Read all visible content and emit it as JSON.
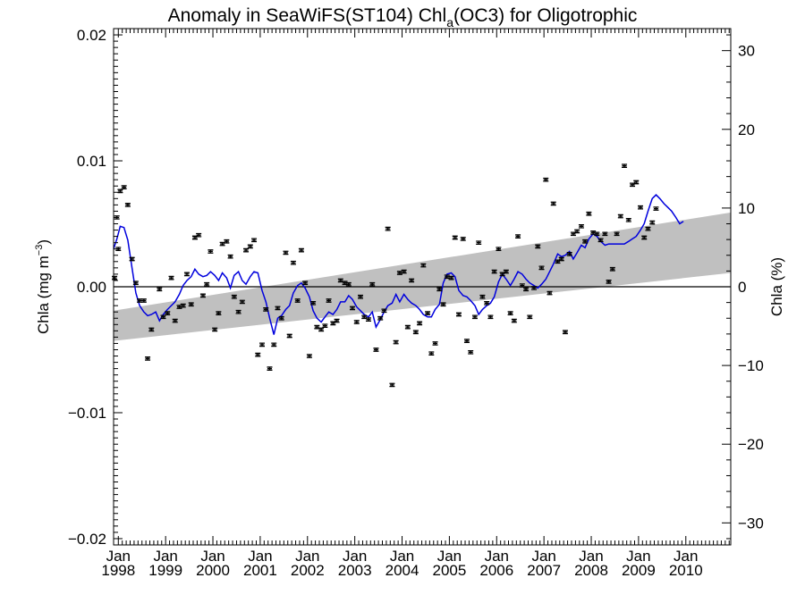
{
  "chart_data": {
    "type": "line",
    "title": {
      "prefix": "Anomaly in SeaWiFS(ST104) Chl",
      "subscript": "a",
      "suffix": "(OC3) for Oligotrophic"
    },
    "ylabel_left": {
      "text": "Chla (mg m",
      "superscript": "−3",
      "close": ")"
    },
    "ylabel_right": "Chla (%)",
    "xlim": [
      1997.9,
      2010.95
    ],
    "ylim_left": [
      -0.0205,
      0.0205
    ],
    "ylim_right": [
      -32.8,
      32.8
    ],
    "x_ticks": [
      {
        "month": "Jan",
        "year": "1998",
        "x": 1998
      },
      {
        "month": "Jan",
        "year": "1999",
        "x": 1999
      },
      {
        "month": "Jan",
        "year": "2000",
        "x": 2000
      },
      {
        "month": "Jan",
        "year": "2001",
        "x": 2001
      },
      {
        "month": "Jan",
        "year": "2002",
        "x": 2002
      },
      {
        "month": "Jan",
        "year": "2003",
        "x": 2003
      },
      {
        "month": "Jan",
        "year": "2004",
        "x": 2004
      },
      {
        "month": "Jan",
        "year": "2005",
        "x": 2005
      },
      {
        "month": "Jan",
        "year": "2006",
        "x": 2006
      },
      {
        "month": "Jan",
        "year": "2007",
        "x": 2007
      },
      {
        "month": "Jan",
        "year": "2008",
        "x": 2008
      },
      {
        "month": "Jan",
        "year": "2009",
        "x": 2009
      },
      {
        "month": "Jan",
        "year": "2010",
        "x": 2010
      }
    ],
    "y_ticks_left": [
      {
        "label": "0.02",
        "value": 0.02
      },
      {
        "label": "0.01",
        "value": 0.01
      },
      {
        "label": "0.00",
        "value": 0.0
      },
      {
        "label": "−0.01",
        "value": -0.01
      },
      {
        "label": "−0.02",
        "value": -0.02
      }
    ],
    "y_ticks_right": [
      {
        "label": "30",
        "value": 30
      },
      {
        "label": "20",
        "value": 20
      },
      {
        "label": "10",
        "value": 10
      },
      {
        "label": "0",
        "value": 0
      },
      {
        "label": "−10",
        "value": -10
      },
      {
        "label": "−20",
        "value": -20
      },
      {
        "label": "−30",
        "value": -30
      }
    ],
    "trend_band": {
      "color": "#c0c0c0",
      "start": {
        "x": 1997.9,
        "lower": -0.0043,
        "upper": -0.0019
      },
      "end": {
        "x": 2010.95,
        "lower": 0.0011,
        "upper": 0.0059
      }
    },
    "zero_line": {
      "value": 0.0,
      "color": "#000000"
    },
    "monthly_anomaly": {
      "color": "#000000",
      "error_bar": 0.00012,
      "points": [
        [
          1997.92,
          0.0007
        ],
        [
          1997.97,
          0.0055
        ],
        [
          1998.0,
          0.003
        ],
        [
          1998.04,
          0.0076
        ],
        [
          1998.12,
          0.0079
        ],
        [
          1998.2,
          0.0065
        ],
        [
          1998.29,
          0.0022
        ],
        [
          1998.37,
          0.0003
        ],
        [
          1998.45,
          -0.0011
        ],
        [
          1998.54,
          -0.0011
        ],
        [
          1998.62,
          -0.0057
        ],
        [
          1998.7,
          -0.0034
        ],
        [
          1998.87,
          -0.0002
        ],
        [
          1998.95,
          -0.0024
        ],
        [
          1999.04,
          -0.0021
        ],
        [
          1999.12,
          0.0007
        ],
        [
          1999.2,
          -0.0027
        ],
        [
          1999.29,
          -0.0016
        ],
        [
          1999.37,
          -0.0015
        ],
        [
          1999.45,
          0.001
        ],
        [
          1999.54,
          -0.0014
        ],
        [
          1999.62,
          0.0039
        ],
        [
          1999.7,
          0.0041
        ],
        [
          1999.79,
          -0.0007
        ],
        [
          1999.87,
          0.0002
        ],
        [
          1999.95,
          0.0028
        ],
        [
          2000.04,
          -0.0034
        ],
        [
          2000.12,
          -0.0021
        ],
        [
          2000.2,
          0.0034
        ],
        [
          2000.29,
          0.0036
        ],
        [
          2000.37,
          0.0024
        ],
        [
          2000.45,
          -0.0008
        ],
        [
          2000.54,
          -0.002
        ],
        [
          2000.62,
          -0.0012
        ],
        [
          2000.7,
          0.0029
        ],
        [
          2000.79,
          0.0032
        ],
        [
          2000.87,
          0.0037
        ],
        [
          2000.95,
          -0.0054
        ],
        [
          2001.04,
          -0.0046
        ],
        [
          2001.12,
          -0.0018
        ],
        [
          2001.2,
          -0.0065
        ],
        [
          2001.29,
          -0.0046
        ],
        [
          2001.37,
          -0.0017
        ],
        [
          2001.45,
          -0.0025
        ],
        [
          2001.54,
          0.0027
        ],
        [
          2001.62,
          -0.0039
        ],
        [
          2001.7,
          0.0019
        ],
        [
          2001.79,
          -0.0011
        ],
        [
          2001.87,
          0.0029
        ],
        [
          2001.95,
          0.0003
        ],
        [
          2002.04,
          -0.0055
        ],
        [
          2002.12,
          -0.0013
        ],
        [
          2002.2,
          -0.0032
        ],
        [
          2002.29,
          -0.0034
        ],
        [
          2002.37,
          -0.0031
        ],
        [
          2002.45,
          -0.0011
        ],
        [
          2002.54,
          -0.0029
        ],
        [
          2002.62,
          -0.0027
        ],
        [
          2002.7,
          0.0005
        ],
        [
          2002.79,
          0.0003
        ],
        [
          2002.87,
          0.0002
        ],
        [
          2002.95,
          -0.0017
        ],
        [
          2003.04,
          -0.0028
        ],
        [
          2003.12,
          -0.0008
        ],
        [
          2003.2,
          -0.0024
        ],
        [
          2003.29,
          -0.0026
        ],
        [
          2003.37,
          0.0002
        ],
        [
          2003.45,
          -0.005
        ],
        [
          2003.54,
          -0.0025
        ],
        [
          2003.62,
          -0.0019
        ],
        [
          2003.7,
          0.0046
        ],
        [
          2003.79,
          -0.0078
        ],
        [
          2003.87,
          -0.0044
        ],
        [
          2003.95,
          0.0011
        ],
        [
          2004.04,
          0.0012
        ],
        [
          2004.12,
          -0.0032
        ],
        [
          2004.2,
          0.0005
        ],
        [
          2004.29,
          -0.0036
        ],
        [
          2004.37,
          -0.0029
        ],
        [
          2004.45,
          0.0017
        ],
        [
          2004.54,
          -0.0021
        ],
        [
          2004.62,
          -0.0053
        ],
        [
          2004.7,
          -0.0045
        ],
        [
          2004.79,
          -0.0002
        ],
        [
          2004.87,
          -0.0014
        ],
        [
          2004.95,
          0.0008
        ],
        [
          2005.04,
          0.0007
        ],
        [
          2005.12,
          0.0039
        ],
        [
          2005.2,
          -0.0022
        ],
        [
          2005.29,
          0.0038
        ],
        [
          2005.37,
          -0.0043
        ],
        [
          2005.45,
          -0.0052
        ],
        [
          2005.54,
          -0.0024
        ],
        [
          2005.62,
          0.0035
        ],
        [
          2005.7,
          -0.0008
        ],
        [
          2005.79,
          -0.0013
        ],
        [
          2005.87,
          -0.0024
        ],
        [
          2005.95,
          0.0012
        ],
        [
          2006.04,
          0.003
        ],
        [
          2006.12,
          0.001
        ],
        [
          2006.2,
          0.0012
        ],
        [
          2006.29,
          -0.0021
        ],
        [
          2006.37,
          -0.0027
        ],
        [
          2006.45,
          0.004
        ],
        [
          2006.54,
          0.0001
        ],
        [
          2006.62,
          -0.0002
        ],
        [
          2006.7,
          -0.0024
        ],
        [
          2006.79,
          -0.0001
        ],
        [
          2006.87,
          0.0032
        ],
        [
          2006.95,
          0.0015
        ],
        [
          2007.04,
          0.0085
        ],
        [
          2007.12,
          -0.0005
        ],
        [
          2007.2,
          0.0066
        ],
        [
          2007.29,
          0.002
        ],
        [
          2007.37,
          0.0022
        ],
        [
          2007.45,
          -0.0036
        ],
        [
          2007.54,
          0.0026
        ],
        [
          2007.62,
          0.0042
        ],
        [
          2007.7,
          0.0044
        ],
        [
          2007.79,
          0.0048
        ],
        [
          2007.87,
          0.0036
        ],
        [
          2007.95,
          0.0058
        ],
        [
          2008.04,
          0.0043
        ],
        [
          2008.12,
          0.0042
        ],
        [
          2008.2,
          0.0037
        ],
        [
          2008.29,
          0.0042
        ],
        [
          2008.37,
          0.0004
        ],
        [
          2008.45,
          0.0014
        ],
        [
          2008.54,
          0.0042
        ],
        [
          2008.62,
          0.0056
        ],
        [
          2008.7,
          0.0096
        ],
        [
          2008.79,
          0.0053
        ],
        [
          2008.87,
          0.0081
        ],
        [
          2008.95,
          0.0083
        ],
        [
          2009.04,
          0.0063
        ],
        [
          2009.12,
          0.0039
        ],
        [
          2009.2,
          0.0046
        ],
        [
          2009.29,
          0.0051
        ],
        [
          2009.37,
          0.0062
        ]
      ]
    },
    "running_mean": {
      "color": "#0000dd",
      "points": [
        [
          1997.9,
          0.003
        ],
        [
          1997.97,
          0.0038
        ],
        [
          1998.04,
          0.0048
        ],
        [
          1998.12,
          0.0047
        ],
        [
          1998.2,
          0.0037
        ],
        [
          1998.29,
          0.0015
        ],
        [
          1998.37,
          -0.0005
        ],
        [
          1998.45,
          -0.0015
        ],
        [
          1998.54,
          -0.002
        ],
        [
          1998.62,
          -0.0023
        ],
        [
          1998.7,
          -0.0022
        ],
        [
          1998.79,
          -0.002
        ],
        [
          1998.87,
          -0.0027
        ],
        [
          1998.95,
          -0.0022
        ],
        [
          1999.04,
          -0.0018
        ],
        [
          1999.12,
          -0.0015
        ],
        [
          1999.2,
          -0.0012
        ],
        [
          1999.29,
          -0.0006
        ],
        [
          1999.37,
          0.0001
        ],
        [
          1999.45,
          0.0005
        ],
        [
          1999.54,
          0.0008
        ],
        [
          1999.62,
          0.0014
        ],
        [
          1999.7,
          0.001
        ],
        [
          1999.79,
          0.0008
        ],
        [
          1999.87,
          0.0009
        ],
        [
          1999.95,
          0.0012
        ],
        [
          2000.04,
          0.0009
        ],
        [
          2000.12,
          0.0005
        ],
        [
          2000.2,
          0.0011
        ],
        [
          2000.29,
          0.0007
        ],
        [
          2000.37,
          -0.0001
        ],
        [
          2000.45,
          0.0009
        ],
        [
          2000.54,
          0.0012
        ],
        [
          2000.62,
          0.0005
        ],
        [
          2000.7,
          0.0002
        ],
        [
          2000.79,
          0.0008
        ],
        [
          2000.87,
          0.0012
        ],
        [
          2000.95,
          0.0011
        ],
        [
          2001.04,
          -0.0003
        ],
        [
          2001.12,
          -0.0012
        ],
        [
          2001.2,
          -0.0025
        ],
        [
          2001.29,
          -0.0038
        ],
        [
          2001.37,
          -0.0025
        ],
        [
          2001.45,
          -0.0023
        ],
        [
          2001.54,
          -0.0018
        ],
        [
          2001.62,
          -0.0015
        ],
        [
          2001.7,
          -0.0005
        ],
        [
          2001.79,
          0.0001
        ],
        [
          2001.87,
          0.0003
        ],
        [
          2001.95,
          -0.0001
        ],
        [
          2002.04,
          -0.0008
        ],
        [
          2002.12,
          -0.0019
        ],
        [
          2002.2,
          -0.0025
        ],
        [
          2002.29,
          -0.0028
        ],
        [
          2002.37,
          -0.0024
        ],
        [
          2002.45,
          -0.002
        ],
        [
          2002.54,
          -0.0022
        ],
        [
          2002.62,
          -0.0018
        ],
        [
          2002.7,
          -0.0012
        ],
        [
          2002.79,
          -0.0012
        ],
        [
          2002.87,
          -0.0007
        ],
        [
          2002.95,
          -0.001
        ],
        [
          2003.04,
          -0.0016
        ],
        [
          2003.12,
          -0.0019
        ],
        [
          2003.2,
          -0.0022
        ],
        [
          2003.29,
          -0.0024
        ],
        [
          2003.37,
          -0.002
        ],
        [
          2003.45,
          -0.0032
        ],
        [
          2003.54,
          -0.0026
        ],
        [
          2003.62,
          -0.002
        ],
        [
          2003.7,
          -0.0015
        ],
        [
          2003.79,
          -0.0013
        ],
        [
          2003.87,
          -0.0006
        ],
        [
          2003.95,
          -0.0012
        ],
        [
          2004.04,
          -0.0006
        ],
        [
          2004.12,
          -0.001
        ],
        [
          2004.2,
          -0.0013
        ],
        [
          2004.29,
          -0.0015
        ],
        [
          2004.37,
          -0.0018
        ],
        [
          2004.45,
          -0.0022
        ],
        [
          2004.54,
          -0.0024
        ],
        [
          2004.62,
          -0.0024
        ],
        [
          2004.7,
          -0.0018
        ],
        [
          2004.79,
          -0.0014
        ],
        [
          2004.87,
          0.0003
        ],
        [
          2004.95,
          0.001
        ],
        [
          2005.04,
          0.0011
        ],
        [
          2005.12,
          0.0008
        ],
        [
          2005.2,
          -0.0003
        ],
        [
          2005.29,
          -0.0007
        ],
        [
          2005.37,
          -0.0008
        ],
        [
          2005.45,
          -0.0011
        ],
        [
          2005.54,
          -0.0015
        ],
        [
          2005.62,
          -0.0022
        ],
        [
          2005.7,
          -0.0018
        ],
        [
          2005.79,
          -0.0015
        ],
        [
          2005.87,
          -0.0013
        ],
        [
          2005.95,
          -0.0008
        ],
        [
          2006.04,
          0.0004
        ],
        [
          2006.12,
          0.001
        ],
        [
          2006.2,
          0.0006
        ],
        [
          2006.29,
          0.0001
        ],
        [
          2006.37,
          0.0006
        ],
        [
          2006.45,
          0.0012
        ],
        [
          2006.54,
          0.001
        ],
        [
          2006.62,
          0.0006
        ],
        [
          2006.7,
          0.0003
        ],
        [
          2006.79,
          0.0001
        ],
        [
          2006.87,
          -0.0001
        ],
        [
          2006.95,
          0.0002
        ],
        [
          2007.04,
          0.0006
        ],
        [
          2007.12,
          0.0012
        ],
        [
          2007.2,
          0.0018
        ],
        [
          2007.29,
          0.0026
        ],
        [
          2007.37,
          0.0024
        ],
        [
          2007.45,
          0.0025
        ],
        [
          2007.54,
          0.0028
        ],
        [
          2007.62,
          0.0022
        ],
        [
          2007.7,
          0.0027
        ],
        [
          2007.79,
          0.0033
        ],
        [
          2007.87,
          0.0031
        ],
        [
          2007.95,
          0.0038
        ],
        [
          2008.04,
          0.0042
        ],
        [
          2008.12,
          0.004
        ],
        [
          2008.2,
          0.0036
        ],
        [
          2008.29,
          0.0033
        ],
        [
          2008.37,
          0.0034
        ],
        [
          2008.45,
          0.0034
        ],
        [
          2008.54,
          0.0034
        ],
        [
          2008.62,
          0.0034
        ],
        [
          2008.7,
          0.0034
        ],
        [
          2008.79,
          0.0036
        ],
        [
          2008.87,
          0.0038
        ],
        [
          2008.95,
          0.004
        ],
        [
          2009.04,
          0.0045
        ],
        [
          2009.12,
          0.005
        ],
        [
          2009.2,
          0.006
        ],
        [
          2009.29,
          0.007
        ],
        [
          2009.37,
          0.0073
        ],
        [
          2009.45,
          0.007
        ],
        [
          2009.54,
          0.0066
        ],
        [
          2009.62,
          0.0063
        ],
        [
          2009.7,
          0.006
        ],
        [
          2009.79,
          0.0055
        ],
        [
          2009.87,
          0.005
        ],
        [
          2009.95,
          0.0052
        ]
      ]
    }
  }
}
